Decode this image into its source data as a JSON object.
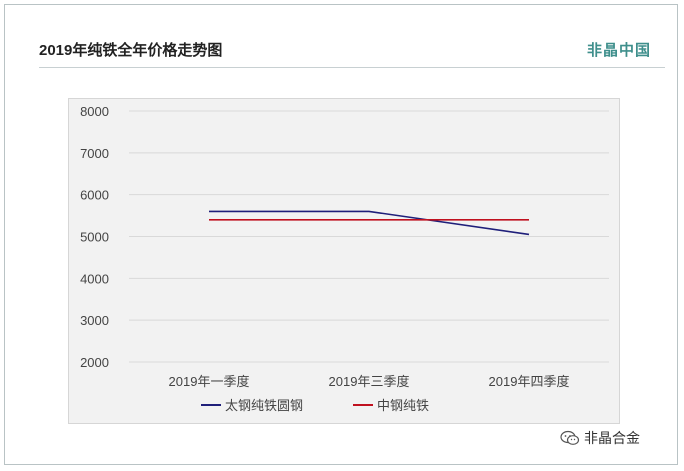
{
  "header": {
    "title": "2019年纯铁全年价格走势图",
    "brand": "非晶中国"
  },
  "watermark": {
    "text": "非晶合金",
    "icon": "wechat-icon"
  },
  "chart_data": {
    "type": "line",
    "categories": [
      "2019年一季度",
      "2019年三季度",
      "2019年四季度"
    ],
    "series": [
      {
        "name": "太钢纯铁圆钢",
        "values": [
          5600,
          5600,
          5050
        ],
        "color": "#1f1f7a"
      },
      {
        "name": "中钢纯铁",
        "values": [
          5400,
          5400,
          5400
        ],
        "color": "#c0111f"
      }
    ],
    "title": "",
    "xlabel": "",
    "ylabel": "",
    "ylim": [
      2000,
      8000
    ],
    "yticks": [
      8000,
      7000,
      6000,
      5000,
      4000,
      3000,
      2000
    ],
    "grid": true,
    "legend": "bottom",
    "background": "#f2f2f2",
    "grid_color": "#d9d9d9"
  }
}
